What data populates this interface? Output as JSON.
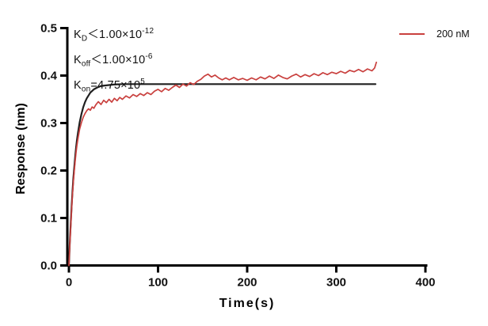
{
  "figure": {
    "background": "#ffffff",
    "axis_color": "#000000",
    "text_color": "#111111",
    "fit_color": "#1f1f1f",
    "sample_color": "#c9403e"
  },
  "annotations": {
    "lines": [
      {
        "param": "K",
        "sub": "D",
        "rel": "＜",
        "mantissa": "1.00×10",
        "exp": "-12"
      },
      {
        "param": "K",
        "sub": "off",
        "rel": "＜",
        "mantissa": "1.00×10",
        "exp": "-6"
      },
      {
        "param": "K",
        "sub": "on",
        "rel": "=",
        "mantissa": "4.75×10",
        "exp": "5"
      }
    ]
  },
  "chart_data": {
    "type": "line",
    "title": "",
    "xlabel": "Time(s)",
    "ylabel": "Response (nm)",
    "xlim": [
      0,
      400
    ],
    "ylim": [
      0,
      0.5
    ],
    "xticks": [
      "0",
      "100",
      "200",
      "300",
      "400"
    ],
    "yticks": [
      "0.0",
      "0.1",
      "0.2",
      "0.3",
      "0.4",
      "0.5"
    ],
    "grid": false,
    "legend_position": "top-right",
    "series": [
      {
        "name": "200 nM",
        "role": "measured",
        "color": "#c9403e",
        "x": [
          0,
          1,
          2,
          3,
          4,
          5,
          6,
          7,
          8,
          9,
          10,
          12,
          14,
          16,
          18,
          20,
          22,
          24,
          26,
          28,
          30,
          33,
          36,
          39,
          42,
          45,
          48,
          51,
          54,
          57,
          60,
          64,
          68,
          72,
          76,
          80,
          84,
          88,
          92,
          96,
          100,
          104,
          108,
          112,
          116,
          120,
          124,
          128,
          132,
          136,
          140,
          144,
          148,
          152,
          156,
          160,
          164,
          168,
          172,
          176,
          180,
          185,
          190,
          195,
          200,
          205,
          210,
          215,
          220,
          225,
          230,
          235,
          240,
          245,
          250,
          255,
          260,
          265,
          270,
          275,
          280,
          285,
          290,
          295,
          300,
          305,
          310,
          315,
          320,
          325,
          330,
          335,
          340,
          343,
          345
        ],
        "y": [
          0.0,
          0.042,
          0.082,
          0.118,
          0.15,
          0.176,
          0.2,
          0.22,
          0.238,
          0.253,
          0.266,
          0.287,
          0.301,
          0.312,
          0.32,
          0.326,
          0.33,
          0.327,
          0.334,
          0.331,
          0.338,
          0.345,
          0.339,
          0.348,
          0.343,
          0.35,
          0.344,
          0.352,
          0.347,
          0.354,
          0.35,
          0.357,
          0.353,
          0.36,
          0.356,
          0.362,
          0.358,
          0.364,
          0.36,
          0.367,
          0.371,
          0.366,
          0.373,
          0.369,
          0.375,
          0.38,
          0.375,
          0.382,
          0.378,
          0.385,
          0.381,
          0.388,
          0.392,
          0.399,
          0.403,
          0.397,
          0.401,
          0.395,
          0.391,
          0.395,
          0.391,
          0.396,
          0.391,
          0.394,
          0.39,
          0.395,
          0.391,
          0.397,
          0.393,
          0.399,
          0.394,
          0.401,
          0.396,
          0.393,
          0.399,
          0.403,
          0.397,
          0.402,
          0.398,
          0.404,
          0.4,
          0.406,
          0.402,
          0.407,
          0.404,
          0.409,
          0.405,
          0.411,
          0.408,
          0.413,
          0.408,
          0.414,
          0.41,
          0.416,
          0.428
        ]
      },
      {
        "name": "fit",
        "role": "fitted-curve",
        "color": "#1f1f1f",
        "x": [
          0,
          1,
          2,
          3,
          4,
          5,
          6,
          7,
          8,
          9,
          10,
          12,
          14,
          16,
          18,
          20,
          24,
          28,
          32,
          36,
          40,
          45,
          50,
          60,
          70,
          80,
          100,
          125,
          150,
          200,
          250,
          300,
          344
        ],
        "y": [
          0.0,
          0.047,
          0.088,
          0.124,
          0.156,
          0.184,
          0.208,
          0.229,
          0.248,
          0.264,
          0.278,
          0.301,
          0.319,
          0.333,
          0.344,
          0.352,
          0.364,
          0.371,
          0.375,
          0.378,
          0.379,
          0.38,
          0.381,
          0.382,
          0.382,
          0.382,
          0.382,
          0.382,
          0.382,
          0.382,
          0.382,
          0.382,
          0.382
        ]
      }
    ]
  }
}
